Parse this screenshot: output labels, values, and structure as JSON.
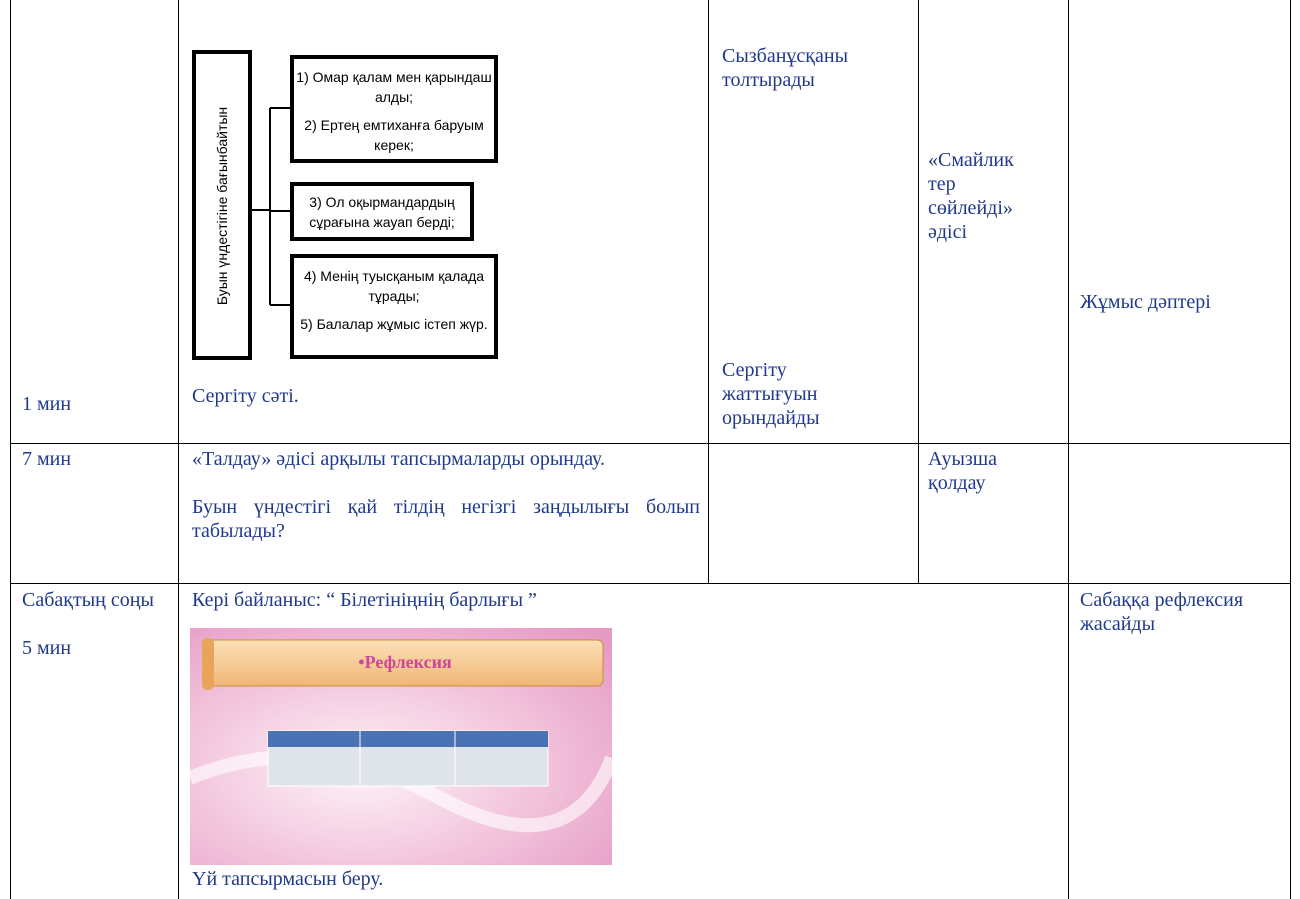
{
  "table": {
    "rows": [
      {
        "time": "1 мин",
        "diagram": {
          "vertical_label": "Буын үндестігіне бағынбайтын",
          "boxes": [
            [
              "1) Омар қалам мен қарындаш алды;",
              "2) Ертең емтиханға баруым керек;"
            ],
            [
              "3) Ол оқырмандардың сұрағына жауап берді;"
            ],
            [
              "4) Менің туысқаным қалада тұрады;",
              "5) Балалар жұмыс істеп жүр."
            ]
          ]
        },
        "activity": "Сергіту сәті.",
        "student": [
          "Сызбанұсқаны толтырады",
          "Сергіту жаттығуын орындайды"
        ],
        "assessment": "«Смайликтер сөйлейді» әдісі",
        "resources": "Жұмыс дәптері"
      },
      {
        "time": "7 мин",
        "activity": [
          "«Талдау» әдісі арқылы тапсырмаларды орындау.",
          "Буын үндестігі қай тілдің негізгі заңдылығы болып табылады?"
        ],
        "assessment": "Ауызша қолдау"
      },
      {
        "time": [
          "Сабақтың соңы",
          "5 мин"
        ],
        "activity": "Кері байланыс: “ Білетініңнің барлығы ”",
        "image_title": "•Рефлексия",
        "homework": "Үй тапсырмасын беру.",
        "resources": "Сабаққа рефлексия жасайды"
      }
    ]
  }
}
